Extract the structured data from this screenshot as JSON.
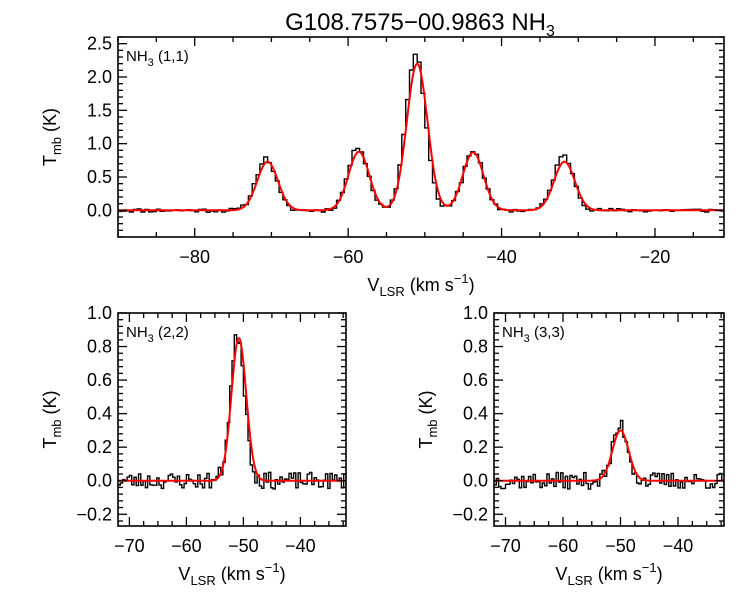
{
  "figure": {
    "title_main": "G108.7575−00.9863 NH",
    "title_sub": "3"
  },
  "colors": {
    "observed": "#000000",
    "fit": "#ff0000",
    "frame": "#000000"
  },
  "chart_data": [
    {
      "type": "line",
      "id": "nh3-11",
      "title": "",
      "label_main": "NH",
      "label_sub": "3",
      "label_tail": " (1,1)",
      "xlabel_main": "V",
      "xlabel_sub": "LSR",
      "xlabel_tail": " (km s",
      "xlabel_sup": "−1",
      "xlabel_close": ")",
      "ylabel_main": "T",
      "ylabel_sub": "mb",
      "ylabel_tail": " (K)",
      "xlim": [
        -90,
        -11
      ],
      "ylim": [
        -0.4,
        2.6
      ],
      "xticks": [
        -80,
        -60,
        -40,
        -20
      ],
      "xtick_labels": [
        "−80",
        "−60",
        "−40",
        "−20"
      ],
      "yticks": [
        0,
        0.5,
        1,
        1.5,
        2,
        2.5
      ],
      "ytick_labels": [
        "0.0",
        "0.5",
        "1.0",
        "1.5",
        "2.0",
        "2.5"
      ],
      "step": 0.5,
      "noise": 0.03,
      "series": [
        {
          "kind": "observed-histogram",
          "peaks": [
            {
              "center": -70.7,
              "amp": 0.78,
              "sigma": 1.3
            },
            {
              "center": -58.7,
              "amp": 0.95,
              "sigma": 1.3
            },
            {
              "center": -51.2,
              "amp": 2.33,
              "sigma": 1.3
            },
            {
              "center": -43.7,
              "amp": 0.9,
              "sigma": 1.3
            },
            {
              "center": -31.9,
              "amp": 0.82,
              "sigma": 1.3
            }
          ]
        },
        {
          "kind": "gaussian-fit",
          "peaks": [
            {
              "center": -70.5,
              "amp": 0.73,
              "sigma": 1.35
            },
            {
              "center": -58.6,
              "amp": 0.88,
              "sigma": 1.35
            },
            {
              "center": -51.0,
              "amp": 2.2,
              "sigma": 1.35
            },
            {
              "center": -43.7,
              "amp": 0.87,
              "sigma": 1.35
            },
            {
              "center": -31.8,
              "amp": 0.73,
              "sigma": 1.35
            }
          ]
        }
      ]
    },
    {
      "type": "line",
      "id": "nh3-22",
      "title": "",
      "label_main": "NH",
      "label_sub": "3",
      "label_tail": " (2,2)",
      "xlabel_main": "V",
      "xlabel_sub": "LSR",
      "xlabel_tail": " (km s",
      "xlabel_sup": "−1",
      "xlabel_close": ")",
      "ylabel_main": "T",
      "ylabel_sub": "mb",
      "ylabel_tail": " (K)",
      "xlim": [
        -72,
        -32
      ],
      "ylim": [
        -0.27,
        1.0
      ],
      "xticks": [
        -70,
        -60,
        -50,
        -40
      ],
      "xtick_labels": [
        "−70",
        "−60",
        "−50",
        "−40"
      ],
      "yticks": [
        -0.2,
        0,
        0.2,
        0.4,
        0.6,
        0.8,
        1.0
      ],
      "ytick_labels": [
        "−0.2",
        "0.0",
        "0.2",
        "0.4",
        "0.6",
        "0.8",
        "1.0"
      ],
      "step": 0.4,
      "noise": 0.05,
      "series": [
        {
          "kind": "observed-histogram",
          "peaks": [
            {
              "center": -51.0,
              "amp": 0.87,
              "sigma": 1.25
            }
          ]
        },
        {
          "kind": "gaussian-fit",
          "peaks": [
            {
              "center": -50.8,
              "amp": 0.85,
              "sigma": 1.3
            }
          ]
        }
      ]
    },
    {
      "type": "line",
      "id": "nh3-33",
      "title": "",
      "label_main": "NH",
      "label_sub": "3",
      "label_tail": " (3,3)",
      "xlabel_main": "V",
      "xlabel_sub": "LSR",
      "xlabel_tail": " (km s",
      "xlabel_sup": "−1",
      "xlabel_close": ")",
      "ylabel_main": "T",
      "ylabel_sub": "mb",
      "ylabel_tail": " (K)",
      "xlim": [
        -72,
        -32
      ],
      "ylim": [
        -0.27,
        1.0
      ],
      "xticks": [
        -70,
        -60,
        -50,
        -40
      ],
      "xtick_labels": [
        "−70",
        "−60",
        "−50",
        "−40"
      ],
      "yticks": [
        -0.2,
        0,
        0.2,
        0.4,
        0.6,
        0.8,
        1.0
      ],
      "ytick_labels": [
        "−0.2",
        "0.0",
        "0.2",
        "0.4",
        "0.6",
        "0.8",
        "1.0"
      ],
      "step": 0.4,
      "noise": 0.05,
      "series": [
        {
          "kind": "observed-histogram",
          "peaks": [
            {
              "center": -50.0,
              "amp": 0.33,
              "sigma": 1.3
            }
          ]
        },
        {
          "kind": "gaussian-fit",
          "peaks": [
            {
              "center": -50.0,
              "amp": 0.3,
              "sigma": 1.4
            }
          ]
        }
      ]
    }
  ]
}
